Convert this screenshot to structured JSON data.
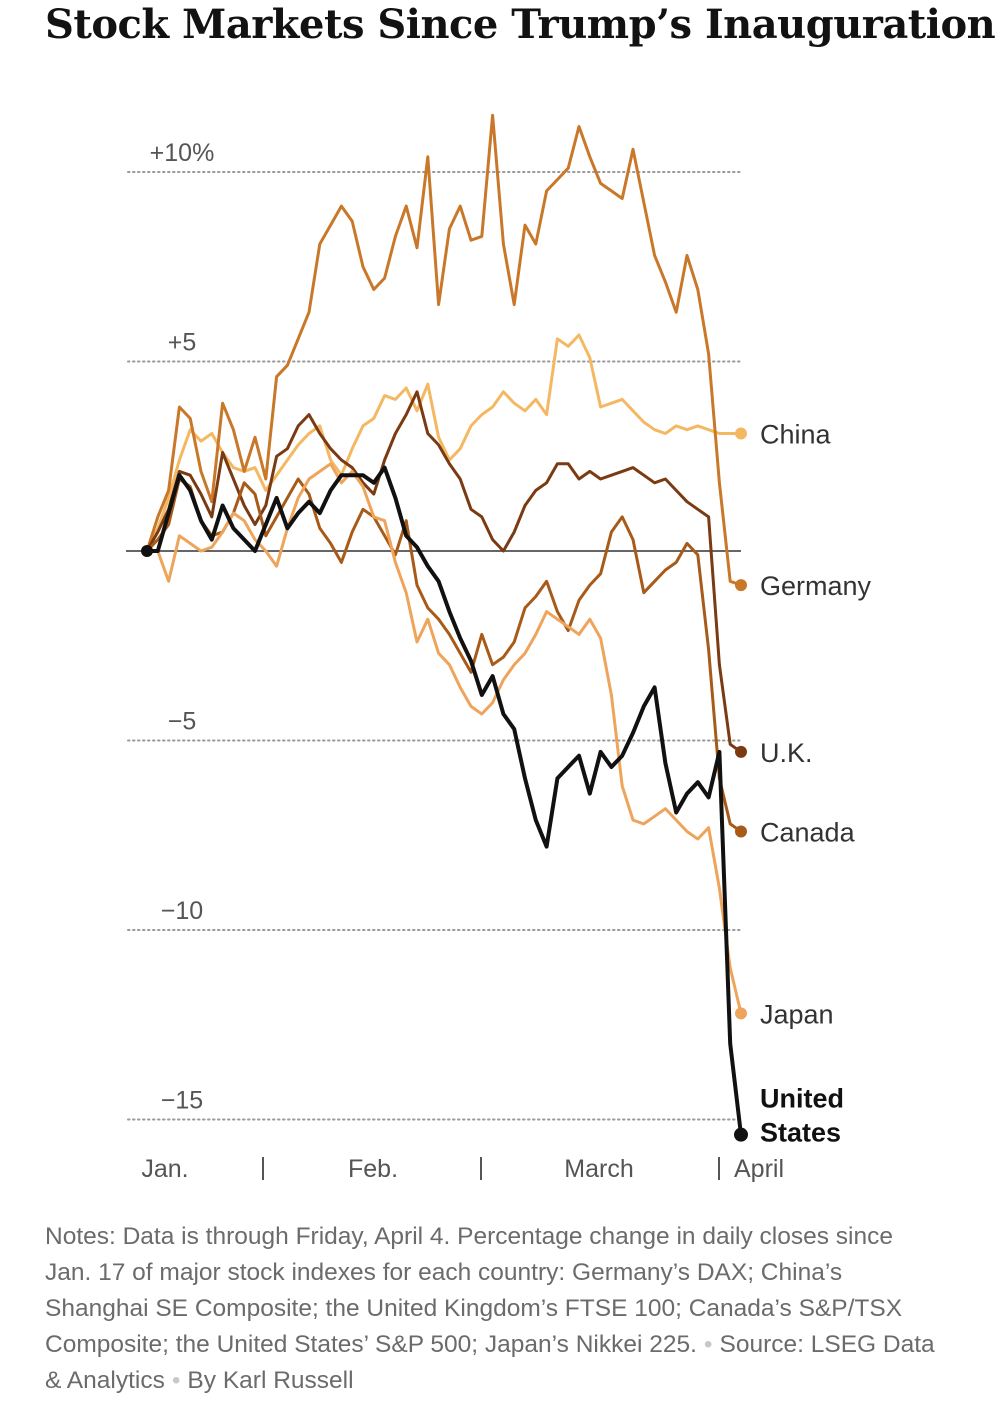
{
  "title": "Stock Markets Since Trump’s Inauguration",
  "notes": {
    "text": "Notes: Data is through Friday, April 4. Percentage change in daily closes since Jan. 17 of major stock indexes for each country: Germany’s DAX; China’s Shanghai SE Composite; the United Kingdom’s FTSE 100; Canada’s S&P/TSX Composite; the United States’ S&P 500; Japan’s Nikkei 225.",
    "source": "Source: LSEG Data & Analytics",
    "byline": "By Karl Russell"
  },
  "chart_data": {
    "type": "line",
    "title": "Stock Markets Since Trump’s Inauguration",
    "xlabel": "",
    "ylabel": "",
    "ylim": [
      -15.5,
      11.5
    ],
    "y_ticks": [
      {
        "value": 10,
        "label": "+10%"
      },
      {
        "value": 5,
        "label": "+5"
      },
      {
        "value": -5,
        "label": "−5"
      },
      {
        "value": -10,
        "label": "−10"
      },
      {
        "value": -15,
        "label": "−15"
      }
    ],
    "x_ticks": [
      "Jan.",
      "Feb.",
      "March",
      "April"
    ],
    "grid": true,
    "x": [
      "Jan. 17",
      "Jan. 20",
      "Jan. 21",
      "Jan. 22",
      "Jan. 23",
      "Jan. 24",
      "Jan. 27",
      "Jan. 28",
      "Jan. 29",
      "Jan. 30",
      "Jan. 31",
      "Feb. 3",
      "Feb. 4",
      "Feb. 5",
      "Feb. 6",
      "Feb. 7",
      "Feb. 10",
      "Feb. 11",
      "Feb. 12",
      "Feb. 13",
      "Feb. 14",
      "Feb. 17",
      "Feb. 18",
      "Feb. 19",
      "Feb. 20",
      "Feb. 21",
      "Feb. 24",
      "Feb. 25",
      "Feb. 26",
      "Feb. 27",
      "Feb. 28",
      "Mar. 3",
      "Mar. 4",
      "Mar. 5",
      "Mar. 6",
      "Mar. 7",
      "Mar. 10",
      "Mar. 11",
      "Mar. 12",
      "Mar. 13",
      "Mar. 14",
      "Mar. 17",
      "Mar. 18",
      "Mar. 19",
      "Mar. 20",
      "Mar. 21",
      "Mar. 24",
      "Mar. 25",
      "Mar. 26",
      "Mar. 27",
      "Mar. 28",
      "Mar. 31",
      "Apr. 1",
      "Apr. 2",
      "Apr. 3",
      "Apr. 4"
    ],
    "series": [
      {
        "name": "China",
        "color": "#f5b862",
        "label_bold": false,
        "end_value": 3.1,
        "values": [
          0,
          0.6,
          1.4,
          2.4,
          3.2,
          2.9,
          3.1,
          2.6,
          2.2,
          2.1,
          2.2,
          1.6,
          2.0,
          2.4,
          2.8,
          3.1,
          3.3,
          2.4,
          2.0,
          2.7,
          3.3,
          3.5,
          4.1,
          4.0,
          4.3,
          3.7,
          4.4,
          3.0,
          2.4,
          2.7,
          3.3,
          3.6,
          3.8,
          4.2,
          3.9,
          3.7,
          4.0,
          3.6,
          5.6,
          5.4,
          5.7,
          5.1,
          3.8,
          3.9,
          4.0,
          3.7,
          3.4,
          3.2,
          3.1,
          3.3,
          3.2,
          3.3,
          3.2,
          3.1,
          3.1,
          3.1
        ]
      },
      {
        "name": "Germany",
        "color": "#c9782a",
        "label_bold": false,
        "end_value": -0.9,
        "values": [
          0,
          0.9,
          1.6,
          3.8,
          3.5,
          2.1,
          1.3,
          3.9,
          3.2,
          2.1,
          3.0,
          1.9,
          4.6,
          4.9,
          5.6,
          6.3,
          8.1,
          8.6,
          9.1,
          8.7,
          7.5,
          6.9,
          7.2,
          8.3,
          9.1,
          8.0,
          10.4,
          6.5,
          8.5,
          9.1,
          8.2,
          8.3,
          11.5,
          8.1,
          6.5,
          8.6,
          8.1,
          9.5,
          9.8,
          10.1,
          11.2,
          10.4,
          9.7,
          9.5,
          9.3,
          10.6,
          9.2,
          7.8,
          7.1,
          6.3,
          7.8,
          6.9,
          5.2,
          1.8,
          -0.8,
          -0.9
        ]
      },
      {
        "name": "U.K.",
        "color": "#7a3a12",
        "label_bold": false,
        "end_value": -5.3,
        "values": [
          0,
          0.5,
          1.1,
          2.1,
          2.0,
          1.5,
          0.9,
          2.6,
          1.9,
          1.2,
          0.7,
          1.2,
          2.5,
          2.7,
          3.3,
          3.6,
          3.1,
          2.7,
          2.4,
          2.2,
          1.8,
          1.5,
          2.4,
          3.1,
          3.6,
          4.2,
          3.1,
          2.8,
          2.3,
          1.9,
          1.1,
          0.9,
          0.3,
          0.0,
          0.5,
          1.2,
          1.6,
          1.8,
          2.3,
          2.3,
          1.9,
          2.1,
          1.9,
          2.0,
          2.1,
          2.2,
          2.0,
          1.8,
          1.9,
          1.6,
          1.3,
          1.1,
          0.9,
          -3.0,
          -5.1,
          -5.3
        ]
      },
      {
        "name": "Canada",
        "color": "#a85b18",
        "label_bold": false,
        "end_value": -7.4,
        "values": [
          0,
          0.3,
          0.7,
          1.9,
          1.7,
          0.8,
          0.4,
          0.5,
          1.0,
          1.8,
          1.5,
          0.4,
          0.9,
          1.4,
          1.9,
          1.5,
          0.6,
          0.2,
          -0.3,
          0.5,
          1.1,
          0.9,
          0.4,
          -0.1,
          0.8,
          -0.9,
          -1.5,
          -1.8,
          -2.2,
          -2.7,
          -3.2,
          -2.2,
          -3.0,
          -2.8,
          -2.4,
          -1.5,
          -1.2,
          -0.8,
          -1.6,
          -2.1,
          -1.3,
          -0.9,
          -0.6,
          0.5,
          0.9,
          0.3,
          -1.1,
          -0.8,
          -0.5,
          -0.3,
          0.2,
          -0.1,
          -2.6,
          -6.0,
          -7.2,
          -7.4
        ]
      },
      {
        "name": "Japan",
        "color": "#eea45b",
        "label_bold": false,
        "end_value": -12.2,
        "values": [
          0,
          0.0,
          -0.8,
          0.4,
          0.2,
          0.0,
          0.1,
          0.5,
          1.0,
          0.8,
          0.3,
          0.0,
          -0.4,
          0.6,
          1.4,
          1.9,
          2.1,
          2.3,
          1.8,
          2.1,
          1.7,
          0.9,
          0.8,
          -0.3,
          -1.1,
          -2.4,
          -1.8,
          -2.7,
          -3.0,
          -3.6,
          -4.1,
          -4.3,
          -4.0,
          -3.4,
          -3.0,
          -2.7,
          -2.2,
          -1.6,
          -1.8,
          -2.0,
          -2.2,
          -1.8,
          -2.3,
          -3.8,
          -6.2,
          -7.1,
          -7.2,
          -7.0,
          -6.8,
          -7.1,
          -7.4,
          -7.6,
          -7.3,
          -8.9,
          -11.0,
          -12.2
        ]
      },
      {
        "name": "United States",
        "color": "#111111",
        "label_bold": true,
        "end_value": -15.4,
        "values": [
          0,
          0.0,
          1.0,
          2.0,
          1.6,
          0.8,
          0.3,
          1.2,
          0.6,
          0.3,
          0.0,
          0.7,
          1.4,
          0.6,
          1.0,
          1.3,
          1.0,
          1.6,
          2.0,
          2.0,
          2.0,
          1.8,
          2.2,
          1.4,
          0.4,
          0.1,
          -0.4,
          -0.8,
          -1.6,
          -2.3,
          -2.9,
          -3.8,
          -3.3,
          -4.3,
          -4.7,
          -6.0,
          -7.1,
          -7.8,
          -6.0,
          -5.7,
          -5.4,
          -6.4,
          -5.3,
          -5.7,
          -5.4,
          -4.8,
          -4.1,
          -3.6,
          -5.6,
          -6.9,
          -6.4,
          -6.1,
          -6.5,
          -5.3,
          -13.0,
          -15.4
        ]
      }
    ]
  }
}
